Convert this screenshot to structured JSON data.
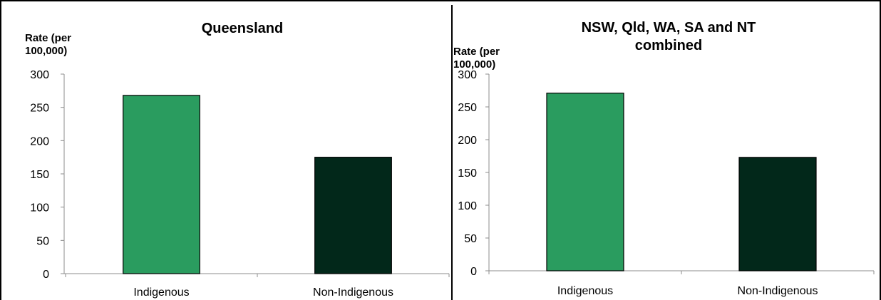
{
  "chart_data": [
    {
      "type": "bar",
      "title": "Queensland",
      "title_lines": [
        "Queensland"
      ],
      "ylabel": "Rate (per 100,000)",
      "ylabel_lines": [
        "Rate (per",
        "100,000)"
      ],
      "xlabel": "",
      "categories": [
        "Indigenous",
        "Non-Indigenous"
      ],
      "values": [
        268,
        175
      ],
      "bar_colors": [
        "#2a9c5f",
        "#02281a"
      ],
      "ylim": [
        0,
        300
      ],
      "yticks": [
        0,
        50,
        100,
        150,
        200,
        250,
        300
      ],
      "grid": false,
      "legend": "none"
    },
    {
      "type": "bar",
      "title": "NSW, Qld, WA, SA and NT combined",
      "title_lines": [
        "NSW, Qld, WA, SA and NT",
        "combined"
      ],
      "ylabel": "Rate (per 100,000)",
      "ylabel_lines": [
        "Rate (per",
        "100,000)"
      ],
      "xlabel": "",
      "categories": [
        "Indigenous",
        "Non-Indigenous"
      ],
      "values": [
        271,
        173
      ],
      "bar_colors": [
        "#2a9c5f",
        "#02281a"
      ],
      "ylim": [
        0,
        300
      ],
      "yticks": [
        0,
        50,
        100,
        150,
        200,
        250,
        300
      ],
      "grid": false,
      "legend": "none"
    }
  ]
}
